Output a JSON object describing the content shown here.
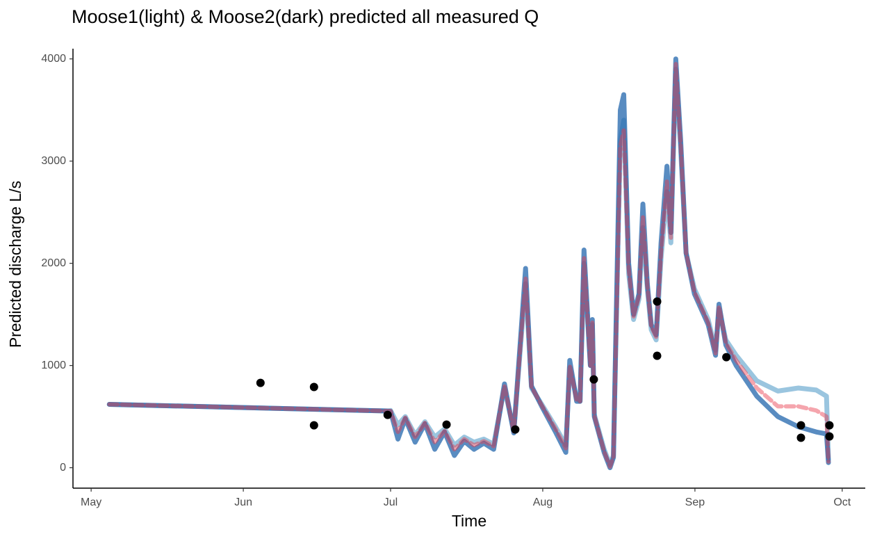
{
  "chart_data": {
    "type": "line",
    "title": "Moose1(light) & Moose2(dark) predicted all measured Q",
    "x_label": "Time",
    "y_label": "Predicted discharge L/s",
    "xlim": [
      -3.7,
      157.7
    ],
    "xticks": [
      {
        "value": 0,
        "label": "May"
      },
      {
        "value": 31,
        "label": "Jun"
      },
      {
        "value": 61,
        "label": "Jul"
      },
      {
        "value": 92,
        "label": "Aug"
      },
      {
        "value": 123,
        "label": "Sep"
      },
      {
        "value": 153,
        "label": "Oct"
      }
    ],
    "ylim": [
      -200,
      4100
    ],
    "yticks": [
      0,
      1000,
      2000,
      3000,
      4000
    ],
    "grid": false,
    "x": [
      3.7,
      60.3,
      61,
      62.5,
      64,
      66,
      68,
      70,
      72,
      74,
      76,
      78,
      80,
      82,
      84.2,
      86.1,
      88.5,
      89.7,
      91.8,
      94.6,
      96.7,
      97.5,
      98.9,
      99.6,
      100.4,
      101.7,
      102.1,
      102.5,
      104.5,
      105.7,
      106.4,
      107.8,
      108.5,
      109.5,
      110.5,
      111.6,
      112.4,
      113.3,
      114.1,
      115.1,
      116.1,
      117.3,
      118.1,
      119.1,
      120.1,
      121.2,
      122.9,
      125.7,
      127.2,
      127.9,
      129.3,
      131.4,
      135.6,
      139.9,
      144.1,
      147.7,
      149.8,
      150.2
    ],
    "series": [
      {
        "color": "#8fbfdc",
        "values": [
          620,
          555,
          560,
          420,
          500,
          320,
          450,
          300,
          380,
          220,
          300,
          250,
          280,
          230,
          780,
          360,
          1800,
          780,
          620,
          400,
          220,
          980,
          680,
          650,
          2000,
          1000,
          1400,
          520,
          180,
          30,
          120,
          3200,
          3400,
          1900,
          1450,
          1650,
          2350,
          1750,
          1350,
          1250,
          2050,
          2700,
          2200,
          3900,
          3100,
          2100,
          1750,
          1450,
          1150,
          1550,
          1250,
          1100,
          850,
          750,
          780,
          760,
          700,
          80
        ]
      },
      {
        "color": "#2166ac",
        "values": [
          620,
          555,
          550,
          280,
          480,
          250,
          430,
          180,
          350,
          120,
          260,
          180,
          240,
          180,
          820,
          340,
          1950,
          800,
          600,
          350,
          150,
          1050,
          650,
          650,
          2130,
          1000,
          1450,
          500,
          150,
          0,
          100,
          3500,
          3650,
          2000,
          1500,
          1700,
          2580,
          1800,
          1400,
          1300,
          2200,
          2950,
          2300,
          4000,
          3200,
          2100,
          1700,
          1400,
          1100,
          1600,
          1200,
          1000,
          700,
          500,
          400,
          350,
          330,
          50
        ]
      },
      {
        "color": "#e8374a",
        "values": [
          620,
          555,
          555,
          350,
          490,
          300,
          440,
          250,
          360,
          180,
          280,
          220,
          260,
          210,
          800,
          350,
          1850,
          790,
          610,
          380,
          190,
          1000,
          660,
          650,
          2050,
          1000,
          1420,
          510,
          160,
          10,
          110,
          3150,
          3300,
          1950,
          1480,
          1680,
          2450,
          1780,
          1380,
          1280,
          2100,
          2800,
          2250,
          3950,
          3150,
          2100,
          1720,
          1420,
          1120,
          1580,
          1220,
          1050,
          780,
          600,
          600,
          560,
          500,
          60
        ]
      }
    ],
    "points": {
      "type": "scatter",
      "color": "#000000",
      "x": [
        34.5,
        45.4,
        45.4,
        60.4,
        72.4,
        86.4,
        102.4,
        115.3,
        115.3,
        129.4,
        144.6,
        144.6,
        150.4,
        150.4
      ],
      "values": [
        830,
        790,
        415,
        517,
        422,
        374,
        864,
        1626,
        1095,
        1082,
        415,
        293,
        415,
        306
      ]
    }
  }
}
